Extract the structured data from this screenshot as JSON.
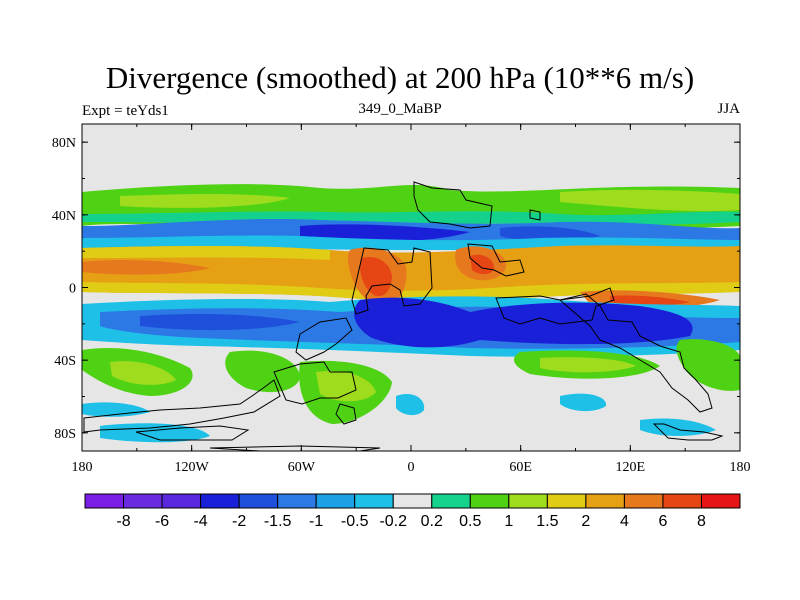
{
  "title": "Divergence (smoothed) at 200 hPa (10**6 m/s)",
  "left_label": "Expt = teYds1",
  "center_label": "349_0_MaBP",
  "right_label": "JJA",
  "map": {
    "lon_ticks": [
      "180",
      "120W",
      "60W",
      "0",
      "60E",
      "120E",
      "180"
    ],
    "lat_ticks": [
      "80N",
      "40N",
      "0",
      "40S",
      "80S"
    ],
    "background_color": "#e6e6e6"
  },
  "colorbar": {
    "labels": [
      "-8",
      "-6",
      "-4",
      "-2",
      "-1.5",
      "-1",
      "-0.5",
      "-0.2",
      "0.2",
      "0.5",
      "1",
      "1.5",
      "2",
      "4",
      "6",
      "8"
    ],
    "colors": [
      "#7a1ee6",
      "#6a2ae0",
      "#5a28dc",
      "#1a20d8",
      "#1e50dc",
      "#2c78e4",
      "#1ea0e6",
      "#1ec0e8",
      "#e6e6e6",
      "#14d28c",
      "#50d214",
      "#a0dc1e",
      "#e0cc14",
      "#e6a014",
      "#e6781e",
      "#e64614",
      "#e61414"
    ]
  }
}
